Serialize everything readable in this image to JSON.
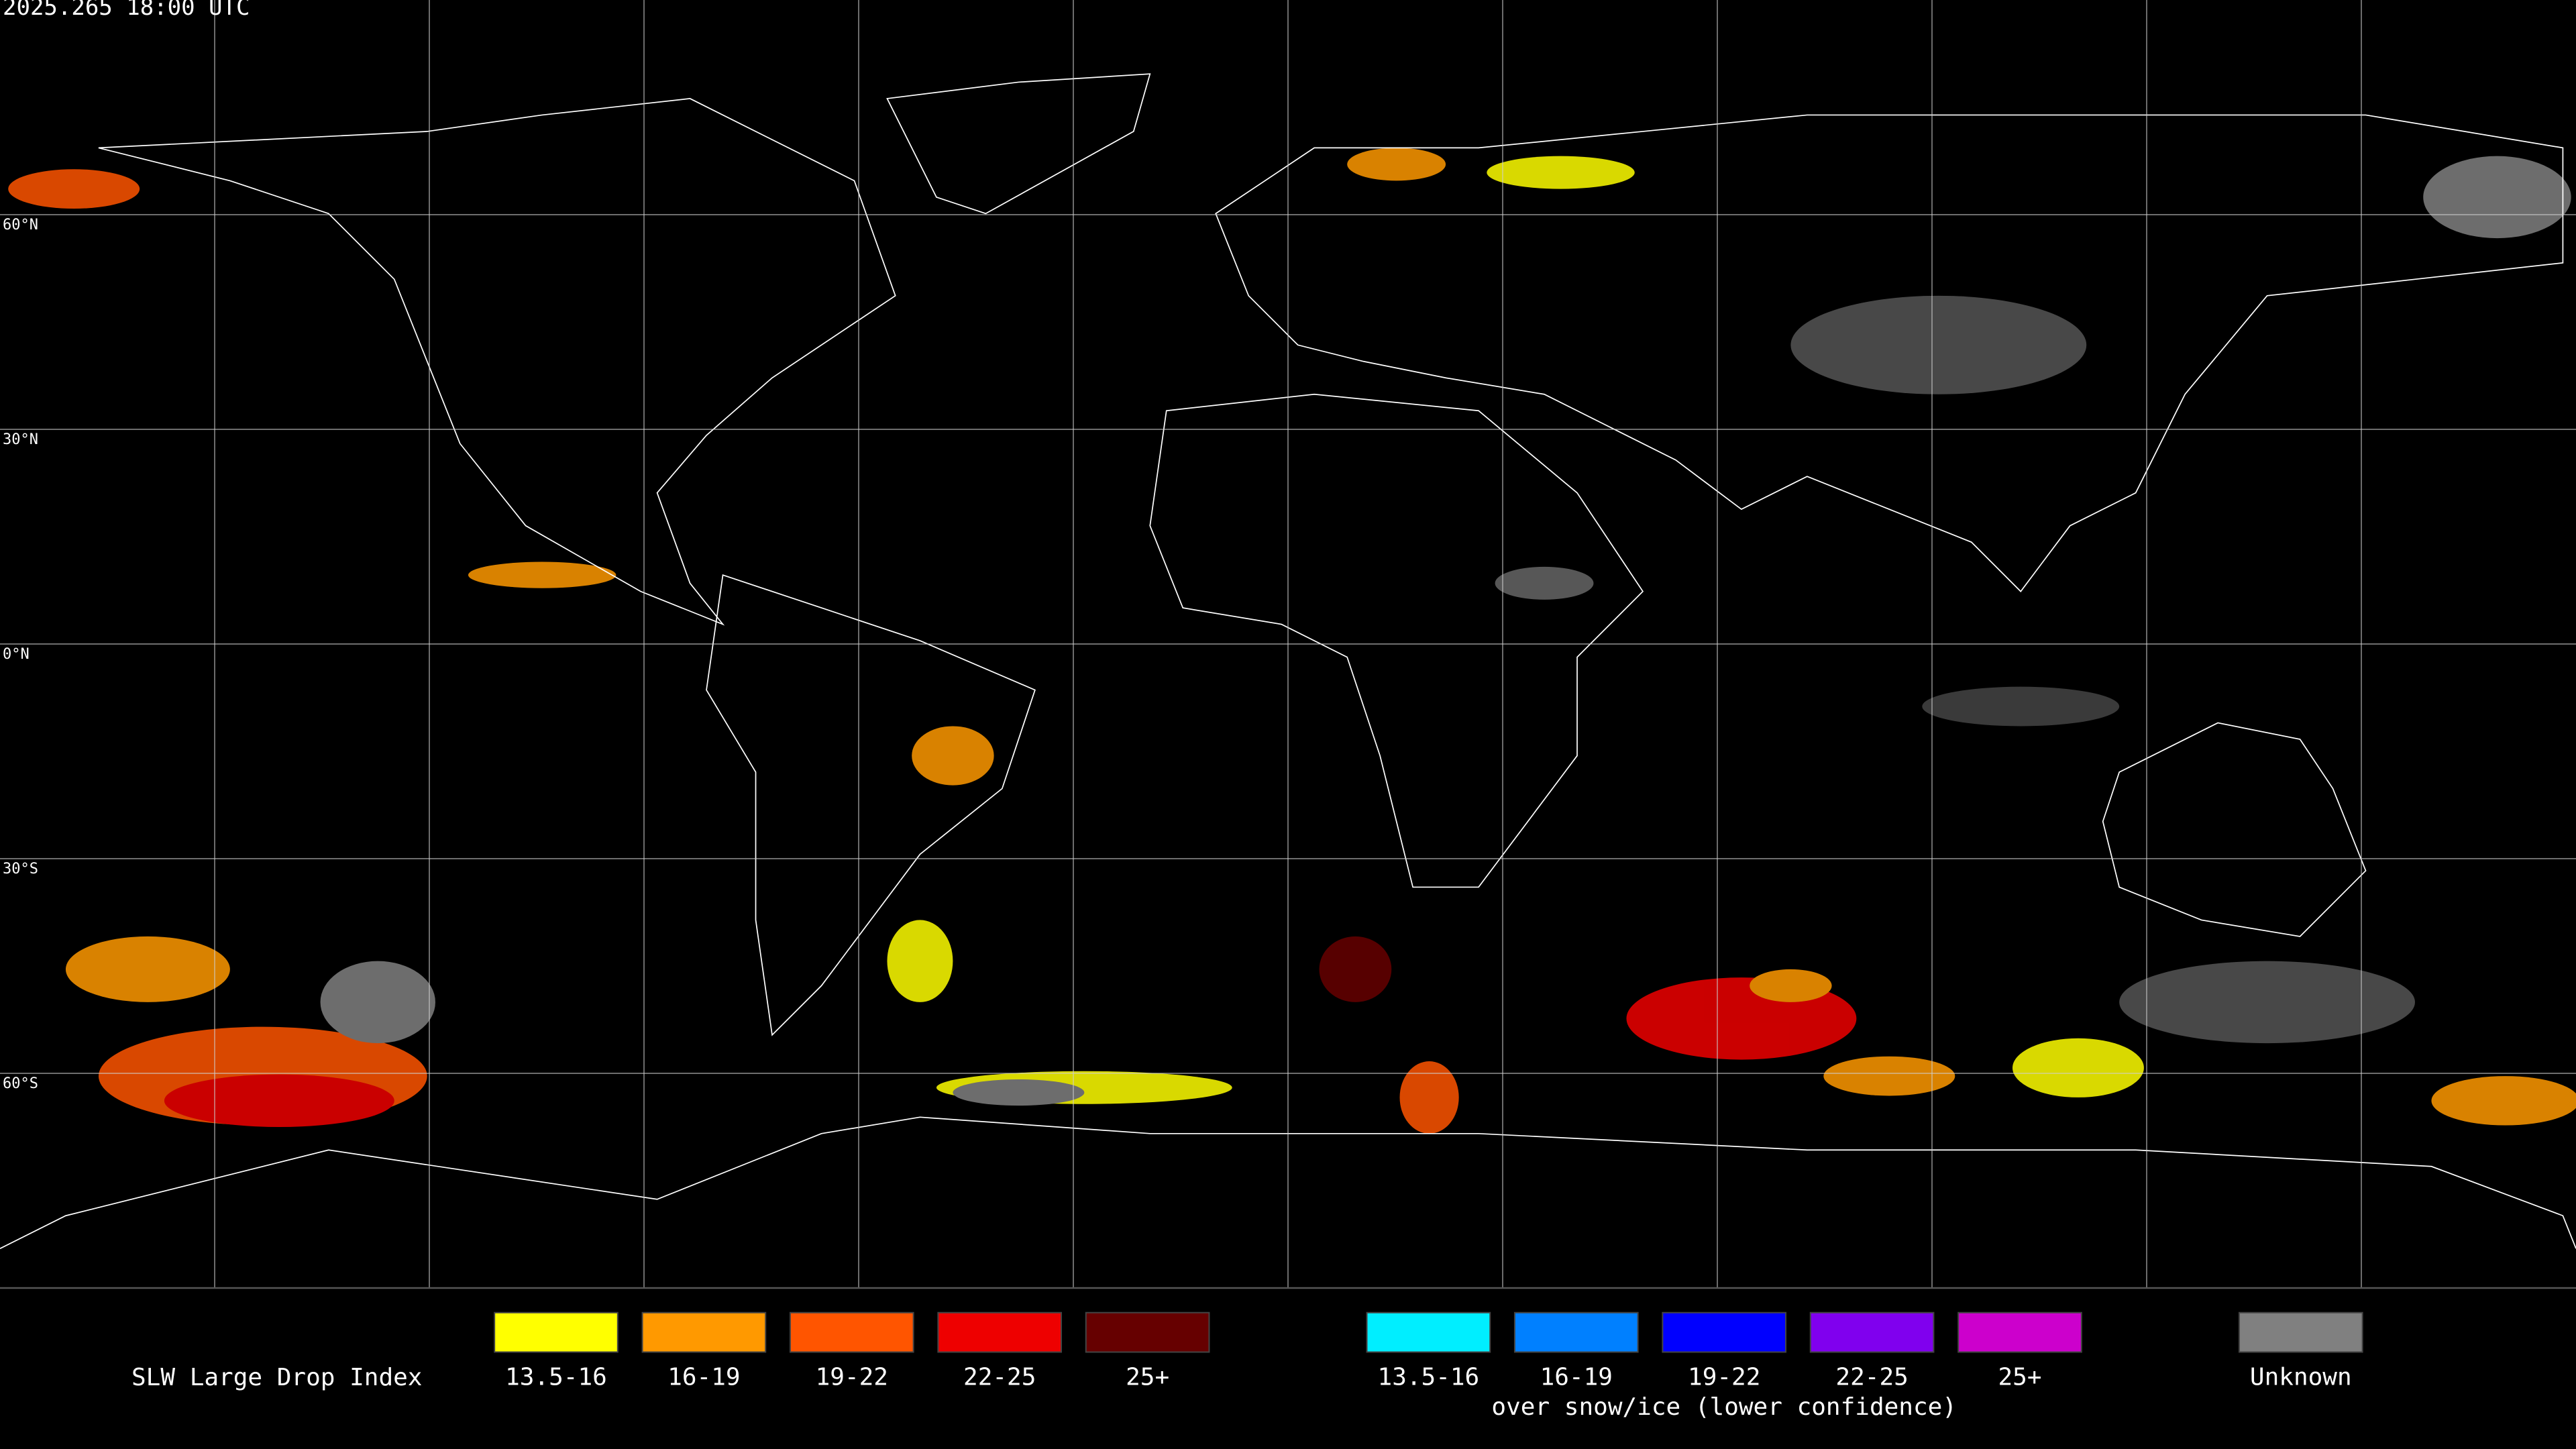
{
  "header": {
    "timestamp": "2025.265 18:00 UTC"
  },
  "map": {
    "lat_labels": [
      "60°N",
      "30°N",
      "0°N",
      "30°S",
      "60°S"
    ]
  },
  "legend": {
    "title": "SLW Large Drop Index",
    "groups": [
      {
        "items": [
          {
            "label": "13.5-16",
            "color": "#ffff00"
          },
          {
            "label": "16-19",
            "color": "#ff9900"
          },
          {
            "label": "19-22",
            "color": "#ff5500"
          },
          {
            "label": "22-25",
            "color": "#ee0000"
          },
          {
            "label": "25+",
            "color": "#660000"
          }
        ]
      },
      {
        "items": [
          {
            "label": "13.5-16",
            "color": "#00eeff"
          },
          {
            "label": "16-19",
            "color": "#0080ff"
          },
          {
            "label": "19-22",
            "color": "#0000ff"
          },
          {
            "label": "22-25",
            "color": "#8000ee"
          },
          {
            "label": "25+",
            "color": "#cc00cc"
          }
        ],
        "caption": "over snow/ice (lower confidence)"
      },
      {
        "items": [
          {
            "label": "Unknown",
            "color": "#808080"
          }
        ]
      }
    ]
  }
}
